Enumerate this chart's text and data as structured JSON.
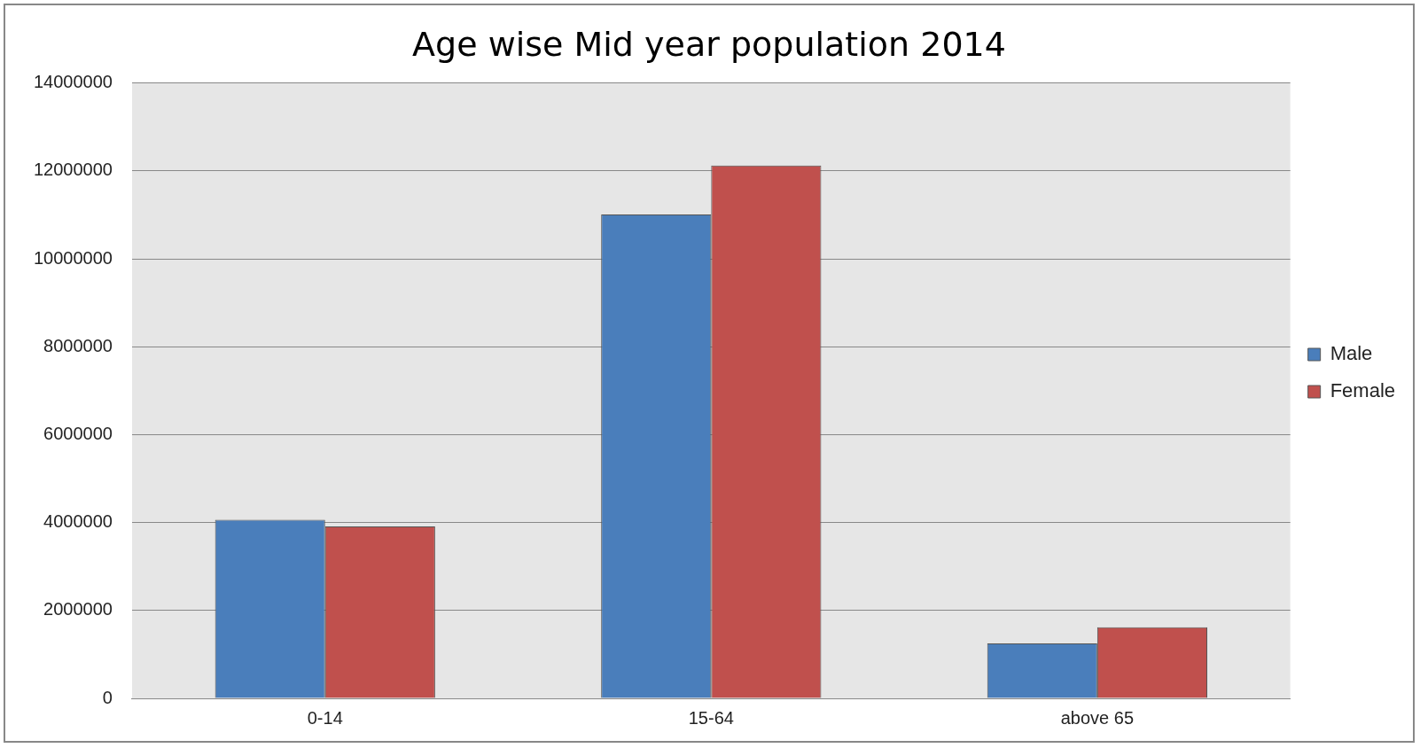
{
  "chart_data": {
    "type": "bar",
    "title": "Age wise Mid year population 2014",
    "categories": [
      "0-14",
      "15-64",
      "above 65"
    ],
    "series": [
      {
        "name": "Male",
        "color": "#4a7ebb",
        "values": [
          4060000,
          11010000,
          1250000
        ]
      },
      {
        "name": "Female",
        "color": "#c0504d",
        "values": [
          3910000,
          12120000,
          1620000
        ]
      }
    ],
    "ylim": [
      0,
      14000000
    ],
    "yticks": [
      0,
      2000000,
      4000000,
      6000000,
      8000000,
      10000000,
      12000000,
      14000000
    ],
    "grid": "y",
    "legend": "right"
  }
}
